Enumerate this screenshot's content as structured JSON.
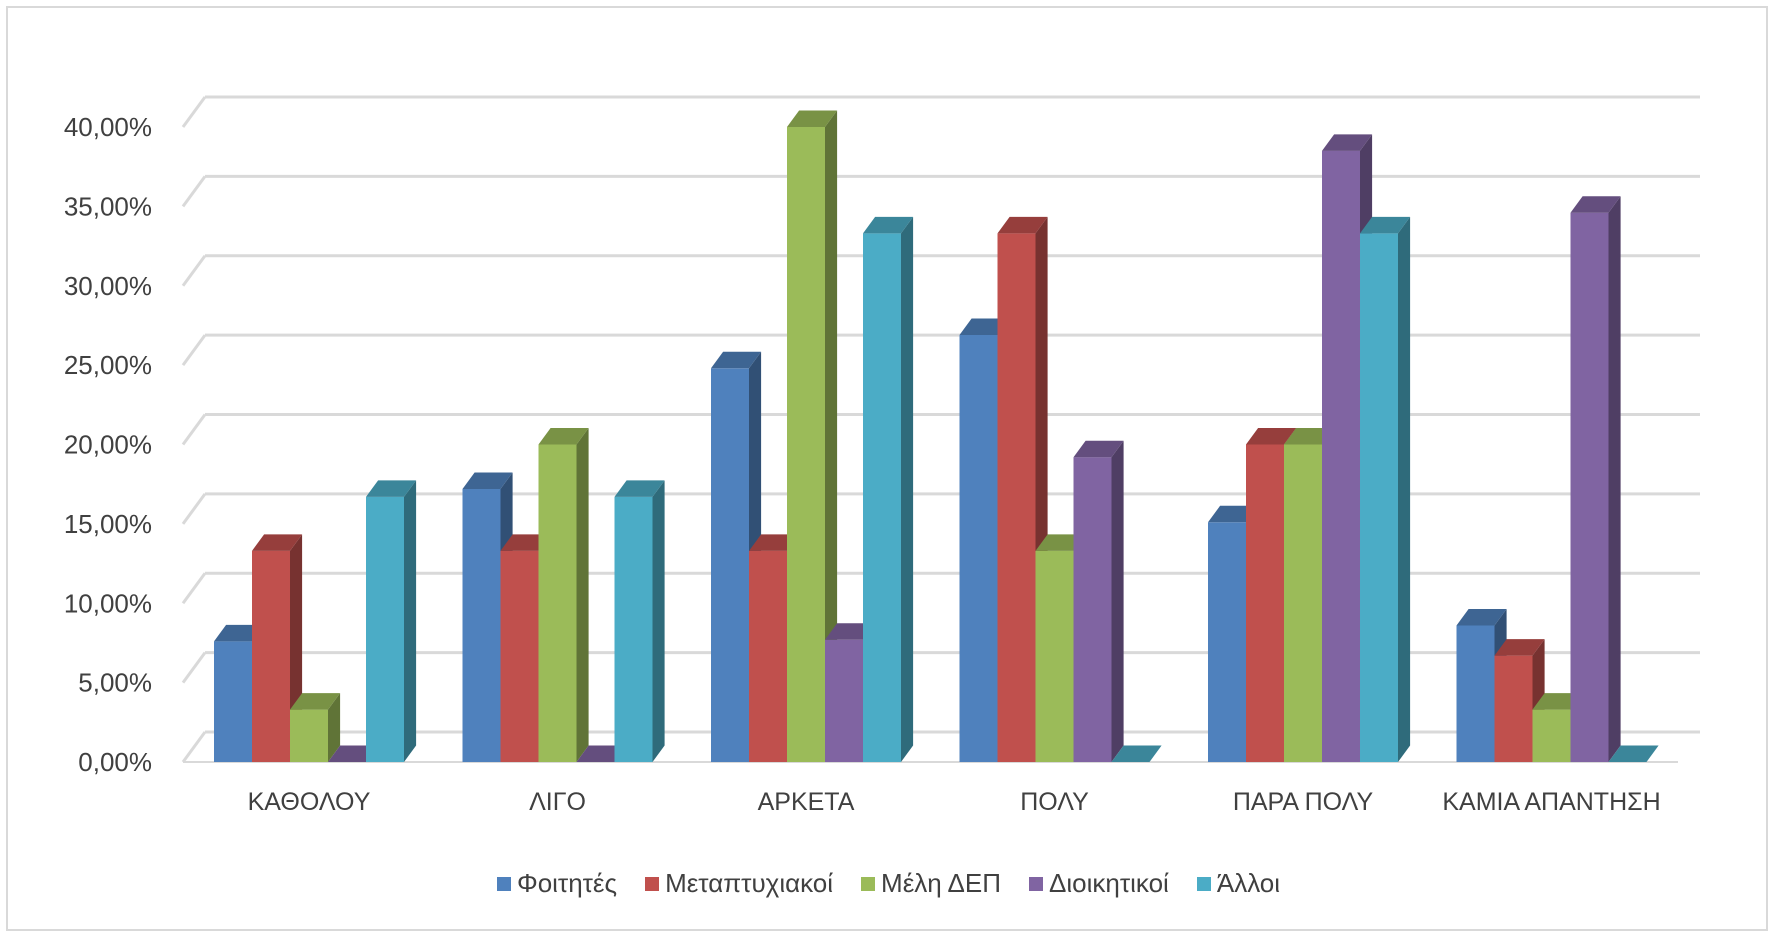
{
  "chart_data": {
    "type": "bar",
    "categories": [
      "ΚΑΘΟΛΟΥ",
      "ΛΙΓΟ",
      "ΑΡΚΕΤΑ",
      "ΠΟΛΥ",
      "ΠΑΡΑ ΠΟΛΥ",
      "ΚΑΜΙΑ ΑΠΑΝΤΗΣΗ"
    ],
    "series": [
      {
        "name": "Φοιτητές",
        "color": "#4F81BD",
        "values": [
          7.6,
          17.2,
          24.8,
          26.9,
          15.1,
          8.6
        ]
      },
      {
        "name": "Μεταπτυχιακοί",
        "color": "#C0504D",
        "values": [
          13.3,
          13.3,
          13.3,
          33.3,
          20.0,
          6.7
        ]
      },
      {
        "name": "Μέλη ΔΕΠ",
        "color": "#9BBB59",
        "values": [
          3.3,
          20.0,
          40.0,
          13.3,
          20.0,
          3.3
        ]
      },
      {
        "name": "Διοικητικοί",
        "color": "#8064A2",
        "values": [
          0.0,
          0.0,
          7.7,
          19.2,
          38.5,
          34.6
        ]
      },
      {
        "name": "Άλλοι",
        "color": "#4BACC6",
        "values": [
          16.7,
          16.7,
          33.3,
          0.0,
          33.3,
          0.0
        ]
      }
    ],
    "yticks": [
      "0,00%",
      "5,00%",
      "10,00%",
      "15,00%",
      "20,00%",
      "25,00%",
      "30,00%",
      "35,00%",
      "40,00%"
    ],
    "ylim": [
      0,
      40
    ],
    "grid": true,
    "legend_position": "bottom",
    "style": "3d-clustered-column"
  }
}
